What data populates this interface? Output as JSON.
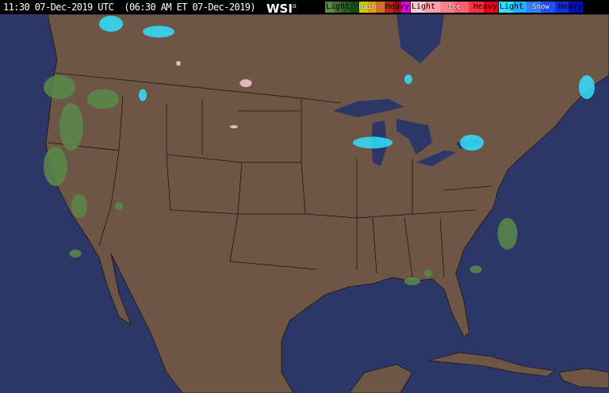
{
  "header": {
    "timestamp": "11:30 07-Dec-2019 UTC  (06:30 AM ET 07-Dec-2019)",
    "logo": "WSI"
  },
  "legend": {
    "rain": {
      "title": "Rain",
      "light": "Light",
      "heavy": "Heavy",
      "colors": [
        "#5a8a4a",
        "#3e6e30",
        "#245a1c",
        "#1a4814",
        "#d0d000",
        "#f0a000",
        "#d07030",
        "#b83010",
        "#a01010",
        "#e000e0"
      ]
    },
    "ice": {
      "title": "Ice",
      "light": "Light",
      "heavy": "Heavy",
      "colors": [
        "#ffc8d0",
        "#ffa0b0",
        "#ff8090",
        "#ff6070",
        "#ff3040",
        "#f00010"
      ]
    },
    "snow": {
      "title": "Snow",
      "light": "Light",
      "heavy": "Heavy",
      "colors": [
        "#30e0ff",
        "#20b0ff",
        "#3080ff",
        "#2050ff",
        "#1030e0",
        "#0010c0"
      ]
    }
  },
  "colors": {
    "land": "#6e5646",
    "water": "#2c3768",
    "borders": "#1e1410"
  }
}
